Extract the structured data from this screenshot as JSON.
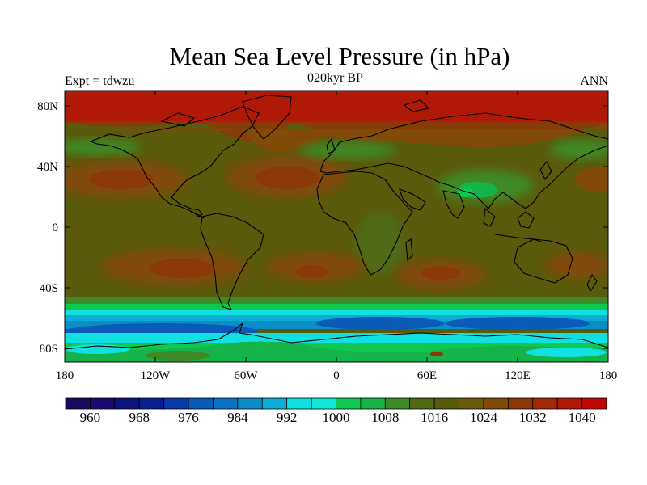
{
  "title": "Mean Sea Level Pressure (in hPa)",
  "subtitle": "020kyr BP",
  "left_label": "Expt = tdwzu",
  "right_label": "ANN",
  "map": {
    "lat_ticks": [
      "80N",
      "40N",
      "0",
      "40S",
      "80S"
    ],
    "lon_ticks": [
      "180",
      "120W",
      "60W",
      "0",
      "60E",
      "120E",
      "180"
    ]
  },
  "colorbar": {
    "colors": [
      "#1a0a5c",
      "#1a0a6e",
      "#0e147e",
      "#0a2090",
      "#0a3aa8",
      "#0a5ab8",
      "#0a72c0",
      "#0a8ec8",
      "#0aaed4",
      "#10e0e0",
      "#10e8d8",
      "#10c850",
      "#14b448",
      "#3c8a28",
      "#506a14",
      "#5a5a0c",
      "#6a5a0a",
      "#824a08",
      "#8a3808",
      "#a02a08",
      "#b01808",
      "#c00808"
    ],
    "labels": [
      "960",
      "968",
      "976",
      "984",
      "992",
      "1000",
      "1008",
      "1016",
      "1024",
      "1032",
      "1040"
    ]
  }
}
